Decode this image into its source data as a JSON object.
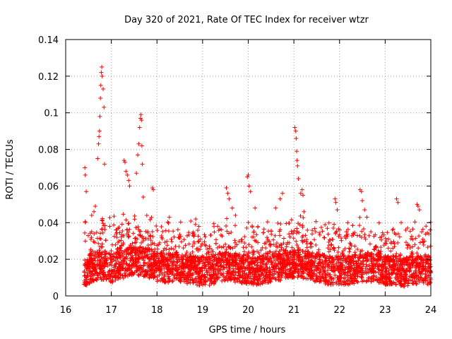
{
  "chart_data": {
    "type": "scatter",
    "title": "Day 320 of 2021, Rate Of TEC Index for receiver wtzr",
    "xlabel": "GPS time / hours",
    "ylabel": "ROTI / TECUs",
    "xlim": [
      16,
      24
    ],
    "ylim": [
      0,
      0.14
    ],
    "xticks": [
      16,
      17,
      18,
      19,
      20,
      21,
      22,
      23,
      24
    ],
    "yticks": [
      0,
      0.02,
      0.04,
      0.06,
      0.08,
      0.1,
      0.12,
      0.14
    ],
    "xtick_labels": [
      "16",
      "17",
      "18",
      "19",
      "20",
      "21",
      "22",
      "23",
      "24"
    ],
    "ytick_labels": [
      "0",
      "0.02",
      "0.04",
      "0.06",
      "0.08",
      "0.1",
      "0.12",
      "0.14"
    ],
    "grid": true,
    "marker": "plus",
    "color": "#ff0000",
    "series": [
      {
        "name": "ROTI",
        "baseline": [
          [
            16.4,
            0.013
          ],
          [
            16.6,
            0.016
          ],
          [
            16.8,
            0.017
          ],
          [
            17.0,
            0.015
          ],
          [
            17.2,
            0.017
          ],
          [
            17.4,
            0.019
          ],
          [
            17.6,
            0.019
          ],
          [
            17.8,
            0.018
          ],
          [
            18.0,
            0.016
          ],
          [
            18.2,
            0.015
          ],
          [
            18.4,
            0.016
          ],
          [
            18.6,
            0.015
          ],
          [
            18.8,
            0.014
          ],
          [
            19.0,
            0.013
          ],
          [
            19.2,
            0.014
          ],
          [
            19.4,
            0.016
          ],
          [
            19.6,
            0.016
          ],
          [
            19.8,
            0.015
          ],
          [
            20.0,
            0.014
          ],
          [
            20.2,
            0.014
          ],
          [
            20.4,
            0.015
          ],
          [
            20.6,
            0.016
          ],
          [
            20.8,
            0.017
          ],
          [
            21.0,
            0.018
          ],
          [
            21.2,
            0.017
          ],
          [
            21.4,
            0.016
          ],
          [
            21.6,
            0.015
          ],
          [
            21.8,
            0.014
          ],
          [
            22.0,
            0.014
          ],
          [
            22.2,
            0.014
          ],
          [
            22.4,
            0.015
          ],
          [
            22.6,
            0.016
          ],
          [
            22.8,
            0.015
          ],
          [
            23.0,
            0.014
          ],
          [
            23.2,
            0.014
          ],
          [
            23.4,
            0.013
          ],
          [
            23.6,
            0.014
          ],
          [
            23.8,
            0.015
          ],
          [
            24.0,
            0.014
          ]
        ],
        "peaks": [
          [
            16.42,
            0.07
          ],
          [
            16.43,
            0.066
          ],
          [
            16.45,
            0.057
          ],
          [
            16.62,
            0.046
          ],
          [
            16.65,
            0.049
          ],
          [
            16.7,
            0.075
          ],
          [
            16.72,
            0.083
          ],
          [
            16.73,
            0.087
          ],
          [
            16.74,
            0.09
          ],
          [
            16.75,
            0.098
          ],
          [
            16.76,
            0.108
          ],
          [
            16.77,
            0.115
          ],
          [
            16.78,
            0.122
          ],
          [
            16.79,
            0.125
          ],
          [
            16.8,
            0.12
          ],
          [
            16.82,
            0.113
          ],
          [
            16.84,
            0.103
          ],
          [
            16.85,
            0.072
          ],
          [
            17.28,
            0.074
          ],
          [
            17.3,
            0.073
          ],
          [
            17.32,
            0.068
          ],
          [
            17.35,
            0.066
          ],
          [
            17.38,
            0.063
          ],
          [
            17.4,
            0.06
          ],
          [
            17.55,
            0.067
          ],
          [
            17.58,
            0.077
          ],
          [
            17.6,
            0.083
          ],
          [
            17.62,
            0.092
          ],
          [
            17.64,
            0.097
          ],
          [
            17.65,
            0.099
          ],
          [
            17.66,
            0.096
          ],
          [
            17.67,
            0.082
          ],
          [
            17.68,
            0.072
          ],
          [
            17.7,
            0.054
          ],
          [
            17.9,
            0.059
          ],
          [
            17.92,
            0.058
          ],
          [
            18.85,
            0.042
          ],
          [
            19.52,
            0.059
          ],
          [
            19.55,
            0.056
          ],
          [
            19.58,
            0.053
          ],
          [
            19.65,
            0.048
          ],
          [
            19.72,
            0.044
          ],
          [
            19.98,
            0.065
          ],
          [
            20.0,
            0.066
          ],
          [
            20.02,
            0.06
          ],
          [
            20.05,
            0.057
          ],
          [
            20.15,
            0.048
          ],
          [
            20.6,
            0.048
          ],
          [
            20.7,
            0.053
          ],
          [
            20.75,
            0.056
          ],
          [
            21.02,
            0.092
          ],
          [
            21.04,
            0.09
          ],
          [
            21.05,
            0.086
          ],
          [
            21.06,
            0.079
          ],
          [
            21.07,
            0.074
          ],
          [
            21.08,
            0.071
          ],
          [
            21.1,
            0.064
          ],
          [
            21.15,
            0.056
          ],
          [
            21.18,
            0.058
          ],
          [
            21.2,
            0.055
          ],
          [
            21.22,
            0.046
          ],
          [
            21.9,
            0.053
          ],
          [
            21.92,
            0.051
          ],
          [
            21.95,
            0.047
          ],
          [
            22.45,
            0.058
          ],
          [
            22.48,
            0.057
          ],
          [
            22.5,
            0.052
          ],
          [
            22.55,
            0.047
          ],
          [
            22.6,
            0.043
          ],
          [
            23.25,
            0.053
          ],
          [
            23.28,
            0.051
          ],
          [
            23.35,
            0.04
          ],
          [
            23.7,
            0.05
          ],
          [
            23.72,
            0.049
          ],
          [
            23.75,
            0.047
          ],
          [
            23.8,
            0.035
          ]
        ]
      }
    ]
  }
}
